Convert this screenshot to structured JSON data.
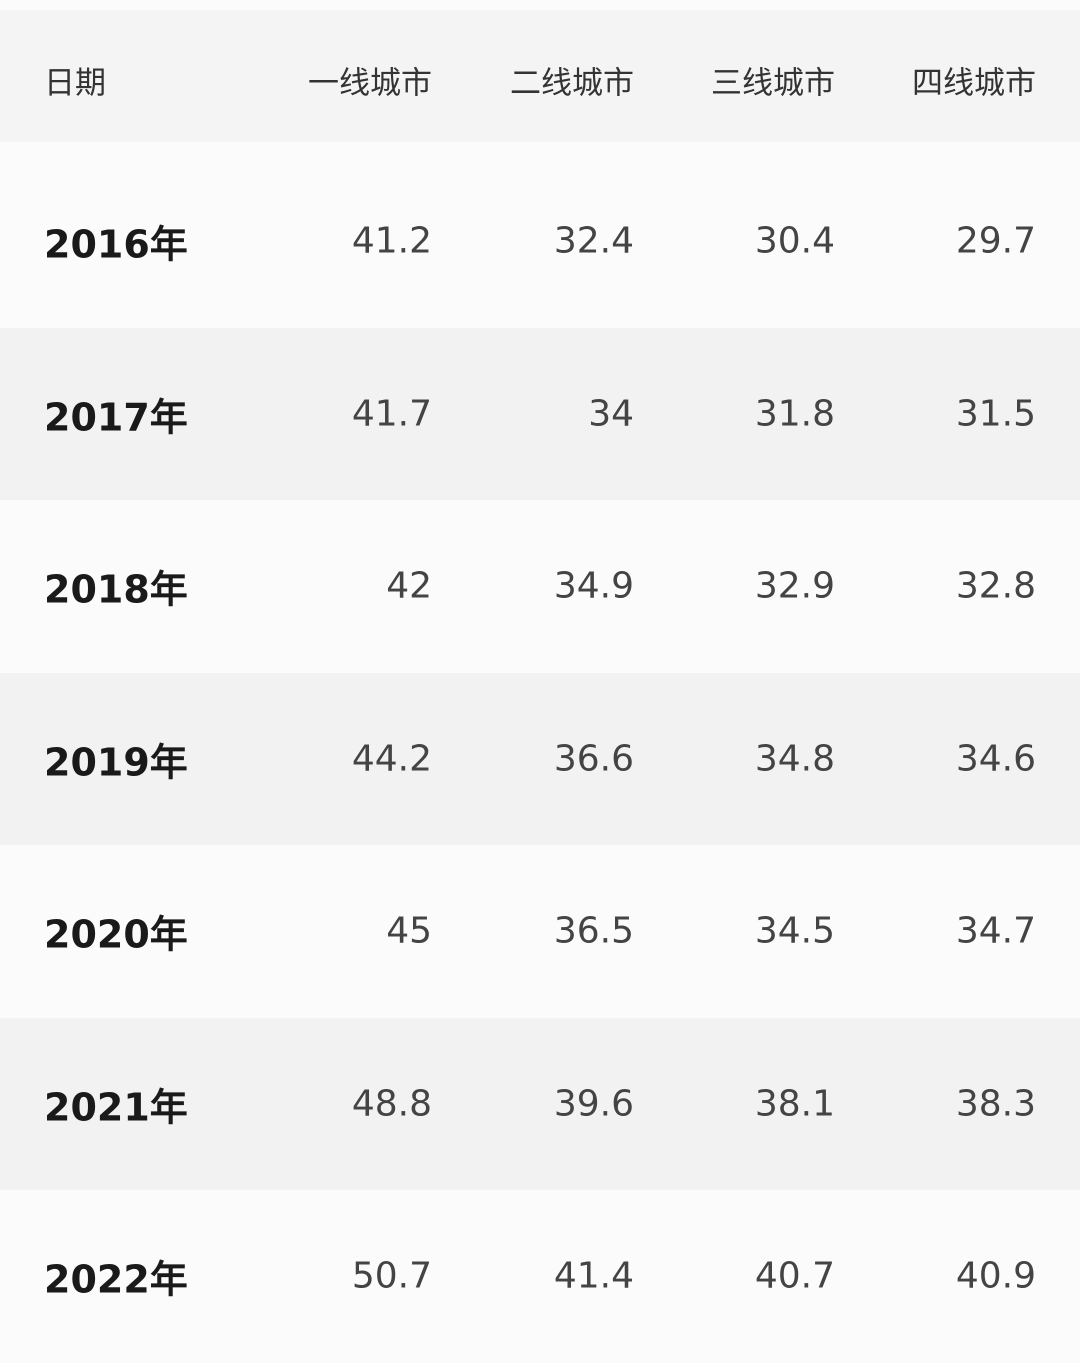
{
  "table": {
    "header": [
      "日期",
      "一线城市",
      "二线城市",
      "三线城市",
      "四线城市"
    ],
    "rows": [
      [
        "2016年",
        41.2,
        32.4,
        30.4,
        29.7
      ],
      [
        "2017年",
        41.7,
        34,
        31.8,
        31.5
      ],
      [
        "2018年",
        42,
        34.9,
        32.9,
        32.8
      ],
      [
        "2019年",
        44.2,
        36.6,
        34.8,
        34.6
      ],
      [
        "2020年",
        45,
        36.5,
        34.5,
        34.7
      ],
      [
        "2021年",
        48.8,
        39.6,
        38.1,
        38.3
      ],
      [
        "2022年",
        50.7,
        41.4,
        40.7,
        40.9
      ]
    ]
  }
}
